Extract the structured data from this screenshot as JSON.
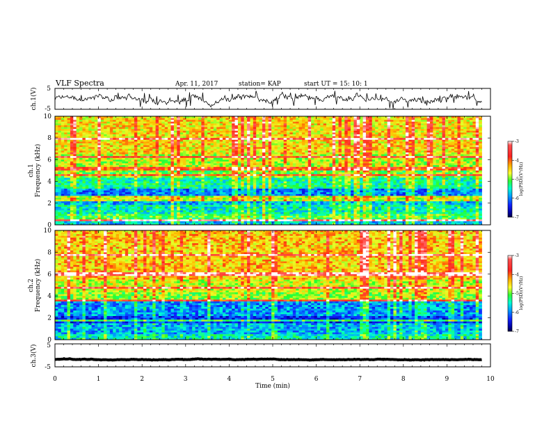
{
  "header": {
    "title": "VLF Spectra",
    "date": "Apr. 11, 2017",
    "station": "station= KAP",
    "start": "start  UT =   15: 10: 1"
  },
  "chart_data": [
    {
      "type": "line",
      "id": "ch1-waveform",
      "ylabel": "ch.1(V)",
      "ylim": [
        -5,
        5
      ],
      "yticks": [
        "5",
        "-5"
      ],
      "xlim": [
        0,
        10
      ],
      "trace_range_min": [
        0,
        9.8
      ],
      "baseline_v": 0.4,
      "noise_v": 1.6
    },
    {
      "type": "heatmap",
      "id": "ch1-spectrogram",
      "ylabel": "ch.1\nFrequency (kHz)",
      "ylabel_line1": "ch.1",
      "ylabel_line2": "Frequency (kHz)",
      "ylim_khz": [
        0,
        10
      ],
      "yticks": [
        "0",
        "2",
        "4",
        "6",
        "8",
        "10"
      ],
      "xlim_min": [
        0,
        10
      ],
      "data_range_min": [
        0,
        9.8
      ],
      "colorbar": {
        "label": "log(PSD)(V²/Hz)",
        "range": [
          -7,
          -3
        ],
        "ticks": [
          "-3",
          "-4",
          "-5",
          "-6",
          "-7"
        ]
      },
      "dominant_level": -5,
      "bands_khz": [
        {
          "f0": 0.0,
          "f1": 0.3,
          "level": -5.6
        },
        {
          "f0": 0.3,
          "f1": 0.5,
          "level": -4.3
        },
        {
          "f0": 0.5,
          "f1": 1.0,
          "level": -5.0
        },
        {
          "f0": 1.0,
          "f1": 1.8,
          "level": -5.4
        },
        {
          "f0": 1.8,
          "f1": 2.4,
          "level": -5.7
        },
        {
          "f0": 2.4,
          "f1": 2.7,
          "level": -4.6
        },
        {
          "f0": 2.7,
          "f1": 3.4,
          "level": -5.9
        },
        {
          "f0": 3.4,
          "f1": 4.4,
          "level": -5.3
        },
        {
          "f0": 4.4,
          "f1": 5.3,
          "level": -4.9
        },
        {
          "f0": 5.3,
          "f1": 6.5,
          "level": -4.7
        },
        {
          "f0": 6.5,
          "f1": 10.0,
          "level": -4.4
        }
      ],
      "lines_khz": [
        0.4,
        2.3,
        4.6,
        5.1,
        5.3,
        6.3,
        7.9
      ]
    },
    {
      "type": "heatmap",
      "id": "ch2-spectrogram",
      "ylabel_line1": "ch.2",
      "ylabel_line2": "Frequency (kHz)",
      "ylim_khz": [
        0,
        10
      ],
      "yticks": [
        "0",
        "2",
        "4",
        "6",
        "8",
        "10"
      ],
      "xlim_min": [
        0,
        10
      ],
      "data_range_min": [
        0,
        9.8
      ],
      "colorbar": {
        "label": "log(PSD)(V²/Hz)",
        "range": [
          -7,
          -3
        ],
        "ticks": [
          "-3",
          "-4",
          "-5",
          "-6",
          "-7"
        ]
      },
      "dominant_level": -5,
      "bands_khz": [
        {
          "f0": 0.0,
          "f1": 0.5,
          "level": -5.4
        },
        {
          "f0": 0.5,
          "f1": 1.5,
          "level": -5.7
        },
        {
          "f0": 1.5,
          "f1": 2.2,
          "level": -6.2
        },
        {
          "f0": 2.2,
          "f1": 3.5,
          "level": -5.8
        },
        {
          "f0": 3.5,
          "f1": 4.4,
          "level": -4.8
        },
        {
          "f0": 4.4,
          "f1": 5.5,
          "level": -4.6
        },
        {
          "f0": 5.5,
          "f1": 10.0,
          "level": -4.3
        }
      ],
      "lines_khz": [
        1.8,
        3.6,
        4.7,
        6.0,
        7.7
      ]
    },
    {
      "type": "line",
      "id": "ch3-waveform",
      "ylabel": "ch.3(V)",
      "ylim": [
        -5,
        5
      ],
      "yticks": [
        "5",
        "-5"
      ],
      "xlim": [
        0,
        10
      ],
      "trace_range_min": [
        0,
        9.8
      ],
      "baseline_v": -1.8,
      "noise_v": 0.15,
      "xlabel": "Time (min)",
      "xticks": [
        "0",
        "1",
        "2",
        "3",
        "4",
        "5",
        "6",
        "7",
        "8",
        "9",
        "10"
      ]
    }
  ]
}
